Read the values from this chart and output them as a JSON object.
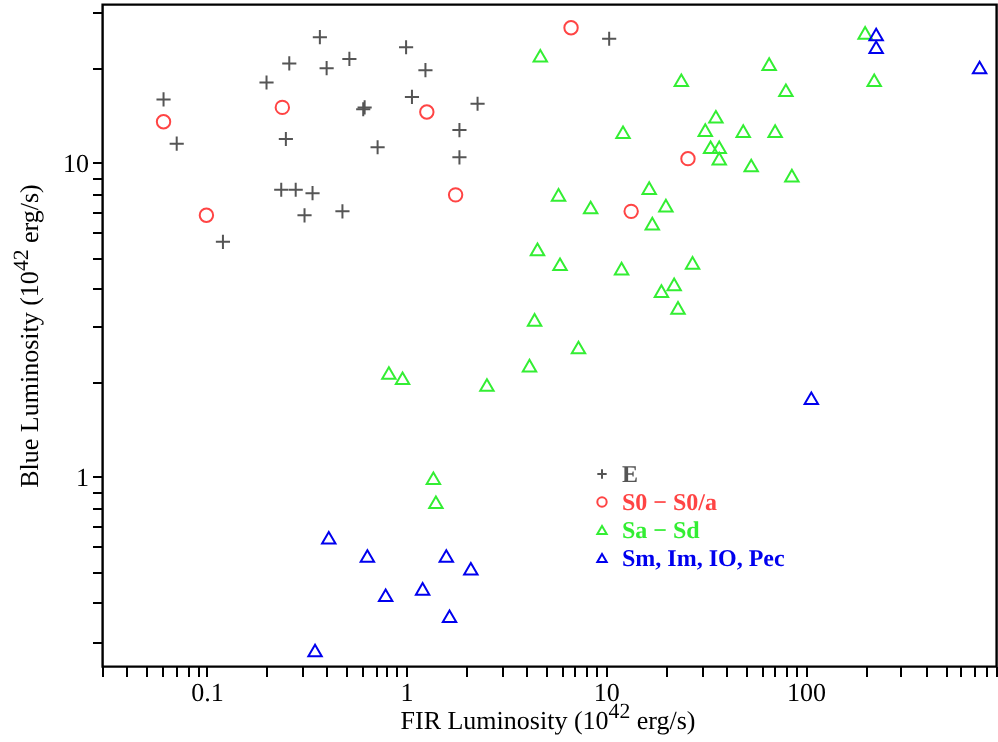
{
  "chart_data": {
    "type": "scatter",
    "xlabel": "FIR Luminosity (10$^{42}$ erg/s)",
    "ylabel": "Blue Luminosity (10$^{42}$ erg/s)",
    "log": "xy",
    "grid": false,
    "legend": "right",
    "xlim": [
      0.03,
      900
    ],
    "ylim": [
      0.25,
      32
    ],
    "xticks": [
      {
        "value": 0.03,
        "label": null
      },
      {
        "value": 0.04,
        "label": null
      },
      {
        "value": 0.05,
        "label": null
      },
      {
        "value": 0.06,
        "label": null
      },
      {
        "value": 0.07,
        "label": null
      },
      {
        "value": 0.08,
        "label": null
      },
      {
        "value": 0.09,
        "label": null
      },
      0.1,
      {
        "value": 0.2,
        "label": null
      },
      {
        "value": 0.3,
        "label": null
      },
      {
        "value": 0.4,
        "label": null
      },
      {
        "value": 0.5,
        "label": null
      },
      {
        "value": 0.6,
        "label": null
      },
      {
        "value": 0.7,
        "label": null
      },
      {
        "value": 0.8,
        "label": null
      },
      {
        "value": 0.9,
        "label": null
      },
      1,
      {
        "value": 2,
        "label": null
      },
      {
        "value": 3,
        "label": null
      },
      {
        "value": 4,
        "label": null
      },
      {
        "value": 5,
        "label": null
      },
      {
        "value": 6,
        "label": null
      },
      {
        "value": 7,
        "label": null
      },
      {
        "value": 8,
        "label": null
      },
      {
        "value": 9,
        "label": null
      },
      10,
      {
        "value": 20,
        "label": null
      },
      {
        "value": 30,
        "label": null
      },
      {
        "value": 40,
        "label": null
      },
      {
        "value": 50,
        "label": null
      },
      {
        "value": 60,
        "label": null
      },
      {
        "value": 70,
        "label": null
      },
      {
        "value": 80,
        "label": null
      },
      {
        "value": 90,
        "label": null
      },
      100,
      {
        "value": 200,
        "label": null
      },
      {
        "value": 300,
        "label": null
      },
      {
        "value": 400,
        "label": null
      },
      {
        "value": 500,
        "label": null
      },
      {
        "value": 600,
        "label": null
      },
      {
        "value": 700,
        "label": null
      },
      {
        "value": 800,
        "label": null
      },
      {
        "value": 900,
        "label": null
      }
    ],
    "yticks": [
      {
        "value": 0.3,
        "label": null
      },
      {
        "value": 0.4,
        "label": null
      },
      {
        "value": 0.5,
        "label": null
      },
      {
        "value": 0.6,
        "label": null
      },
      {
        "value": 0.7,
        "label": null
      },
      {
        "value": 0.8,
        "label": null
      },
      {
        "value": 0.9,
        "label": null
      },
      1,
      {
        "value": 2,
        "label": null
      },
      {
        "value": 3,
        "label": null
      },
      {
        "value": 4,
        "label": null
      },
      {
        "value": 5,
        "label": null
      },
      {
        "value": 6,
        "label": null
      },
      {
        "value": 7,
        "label": null
      },
      {
        "value": 8,
        "label": null
      },
      {
        "value": 9,
        "label": null
      },
      10,
      {
        "value": 20,
        "label": null
      },
      {
        "value": 30,
        "label": null
      }
    ],
    "series": [
      {
        "name": "E",
        "color": "#555555",
        "marker": "cross",
        "x": [
          0.061,
          0.071,
          0.121,
          0.2,
          0.26,
          0.25,
          0.237,
          0.28,
          0.34,
          0.31,
          0.37,
          0.4,
          0.52,
          0.48,
          0.61,
          0.62,
          0.72,
          1.0,
          1.25,
          1.07,
          2.28,
          1.85,
          1.85,
          10.4
        ],
        "values": [
          15.9,
          11.5,
          5.6,
          18.0,
          20.7,
          11.9,
          8.2,
          8.2,
          8.0,
          6.8,
          25.1,
          20.0,
          21.4,
          7.0,
          14.8,
          15.0,
          11.2,
          23.3,
          19.7,
          16.2,
          15.4,
          12.7,
          10.4,
          24.8
        ]
      },
      {
        "name": "S0 − S0/a",
        "color": "#ff4444",
        "marker": "circle",
        "x": [
          0.061,
          0.1,
          0.24,
          1.27,
          1.77,
          6.7,
          25.8,
          13.4
        ],
        "values": [
          13.5,
          6.8,
          15.0,
          14.5,
          7.9,
          26.9,
          10.3,
          7.0
        ]
      },
      {
        "name": "Sa − Sd",
        "color": "#33ee33",
        "marker": "triangle",
        "x": [
          4.7,
          23.9,
          65.8,
          79.8,
          199,
          221,
          12.2,
          35.6,
          31.5,
          48.8,
          70.5,
          33.5,
          37.0,
          37.0,
          53.5,
          85.5,
          5.8,
          16.5,
          8.4,
          20.0,
          17.1,
          4.55,
          5.9,
          12.0,
          27.2,
          19.0,
          22.0,
          23.0,
          4.4,
          7.3,
          0.82,
          0.96,
          2.54,
          4.15,
          1.37,
          1.41
        ],
        "values": [
          21.9,
          18.3,
          20.6,
          17.0,
          25.9,
          18.3,
          12.5,
          14.0,
          12.7,
          12.6,
          12.6,
          11.2,
          11.2,
          10.3,
          9.8,
          9.1,
          7.9,
          8.3,
          7.2,
          7.3,
          6.4,
          5.3,
          4.75,
          4.6,
          4.8,
          3.9,
          4.1,
          3.45,
          3.16,
          2.58,
          2.14,
          2.06,
          1.96,
          2.26,
          0.99,
          0.83
        ]
      },
      {
        "name": "Sm, Im, IO, Pec",
        "color": "#0000ee",
        "marker": "triangle",
        "x": [
          0.41,
          0.64,
          0.79,
          1.21,
          1.59,
          2.11,
          1.65,
          0.35,
          107,
          226,
          226,
          745
        ],
        "values": [
          0.64,
          0.56,
          0.42,
          0.44,
          0.56,
          0.51,
          0.36,
          0.28,
          1.78,
          25.6,
          23.3,
          20.1
        ]
      }
    ]
  }
}
